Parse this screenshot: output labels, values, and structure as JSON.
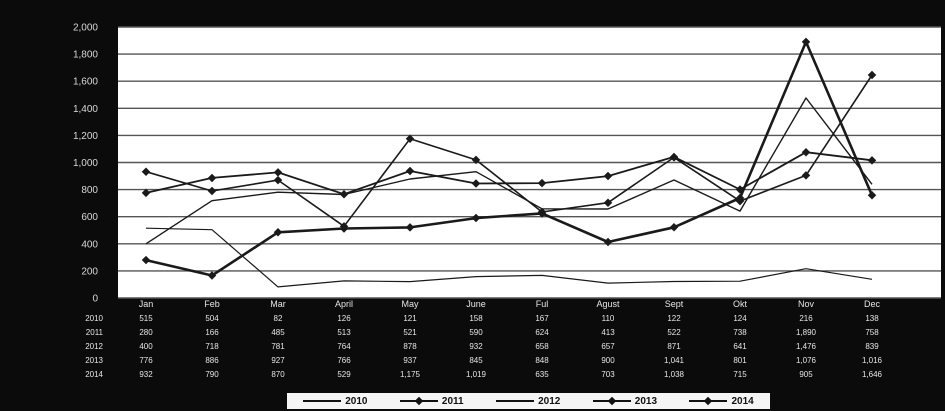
{
  "chart_data": {
    "type": "line",
    "title": "",
    "xlabel": "",
    "ylabel": "",
    "categories": [
      "Jan",
      "Feb",
      "Mar",
      "April",
      "May",
      "June",
      "Ful",
      "Agust",
      "Sept",
      "Okt",
      "Nov",
      "Dec"
    ],
    "y_ticks": [
      "0",
      "200",
      "400",
      "600",
      "800",
      "1,000",
      "1,200",
      "1,400",
      "1,600",
      "1,800",
      "2,000"
    ],
    "ylim": [
      0,
      2000
    ],
    "grid": true,
    "legend_position": "bottom",
    "series": [
      {
        "name": "2010",
        "values": [
          515,
          504,
          82,
          126,
          121,
          158,
          167,
          110,
          122,
          124,
          216,
          138
        ],
        "cells": [
          "515",
          "504",
          "82",
          "126",
          "121",
          "158",
          "167",
          "110",
          "122",
          "124",
          "216",
          "138"
        ]
      },
      {
        "name": "2011",
        "values": [
          280,
          166,
          485,
          513,
          521,
          590,
          624,
          413,
          522,
          738,
          1890,
          758
        ],
        "cells": [
          "280",
          "166",
          "485",
          "513",
          "521",
          "590",
          "624",
          "413",
          "522",
          "738",
          "1,890",
          "758"
        ]
      },
      {
        "name": "2012",
        "values": [
          400,
          718,
          781,
          764,
          878,
          932,
          658,
          657,
          871,
          641,
          1476,
          839
        ],
        "cells": [
          "400",
          "718",
          "781",
          "764",
          "878",
          "932",
          "658",
          "657",
          "871",
          "641",
          "1,476",
          "839"
        ]
      },
      {
        "name": "2013",
        "values": [
          776,
          886,
          927,
          766,
          937,
          845,
          848,
          900,
          1041,
          801,
          1076,
          1016
        ],
        "cells": [
          "776",
          "886",
          "927",
          "766",
          "937",
          "845",
          "848",
          "900",
          "1,041",
          "801",
          "1,076",
          "1,016"
        ]
      },
      {
        "name": "2014",
        "values": [
          932,
          790,
          870,
          529,
          1175,
          1019,
          635,
          703,
          1038,
          715,
          905,
          1646
        ],
        "cells": [
          "932",
          "790",
          "870",
          "529",
          "1,175",
          "1,019",
          "635",
          "703",
          "1,038",
          "715",
          "905",
          "1,646"
        ]
      }
    ]
  }
}
